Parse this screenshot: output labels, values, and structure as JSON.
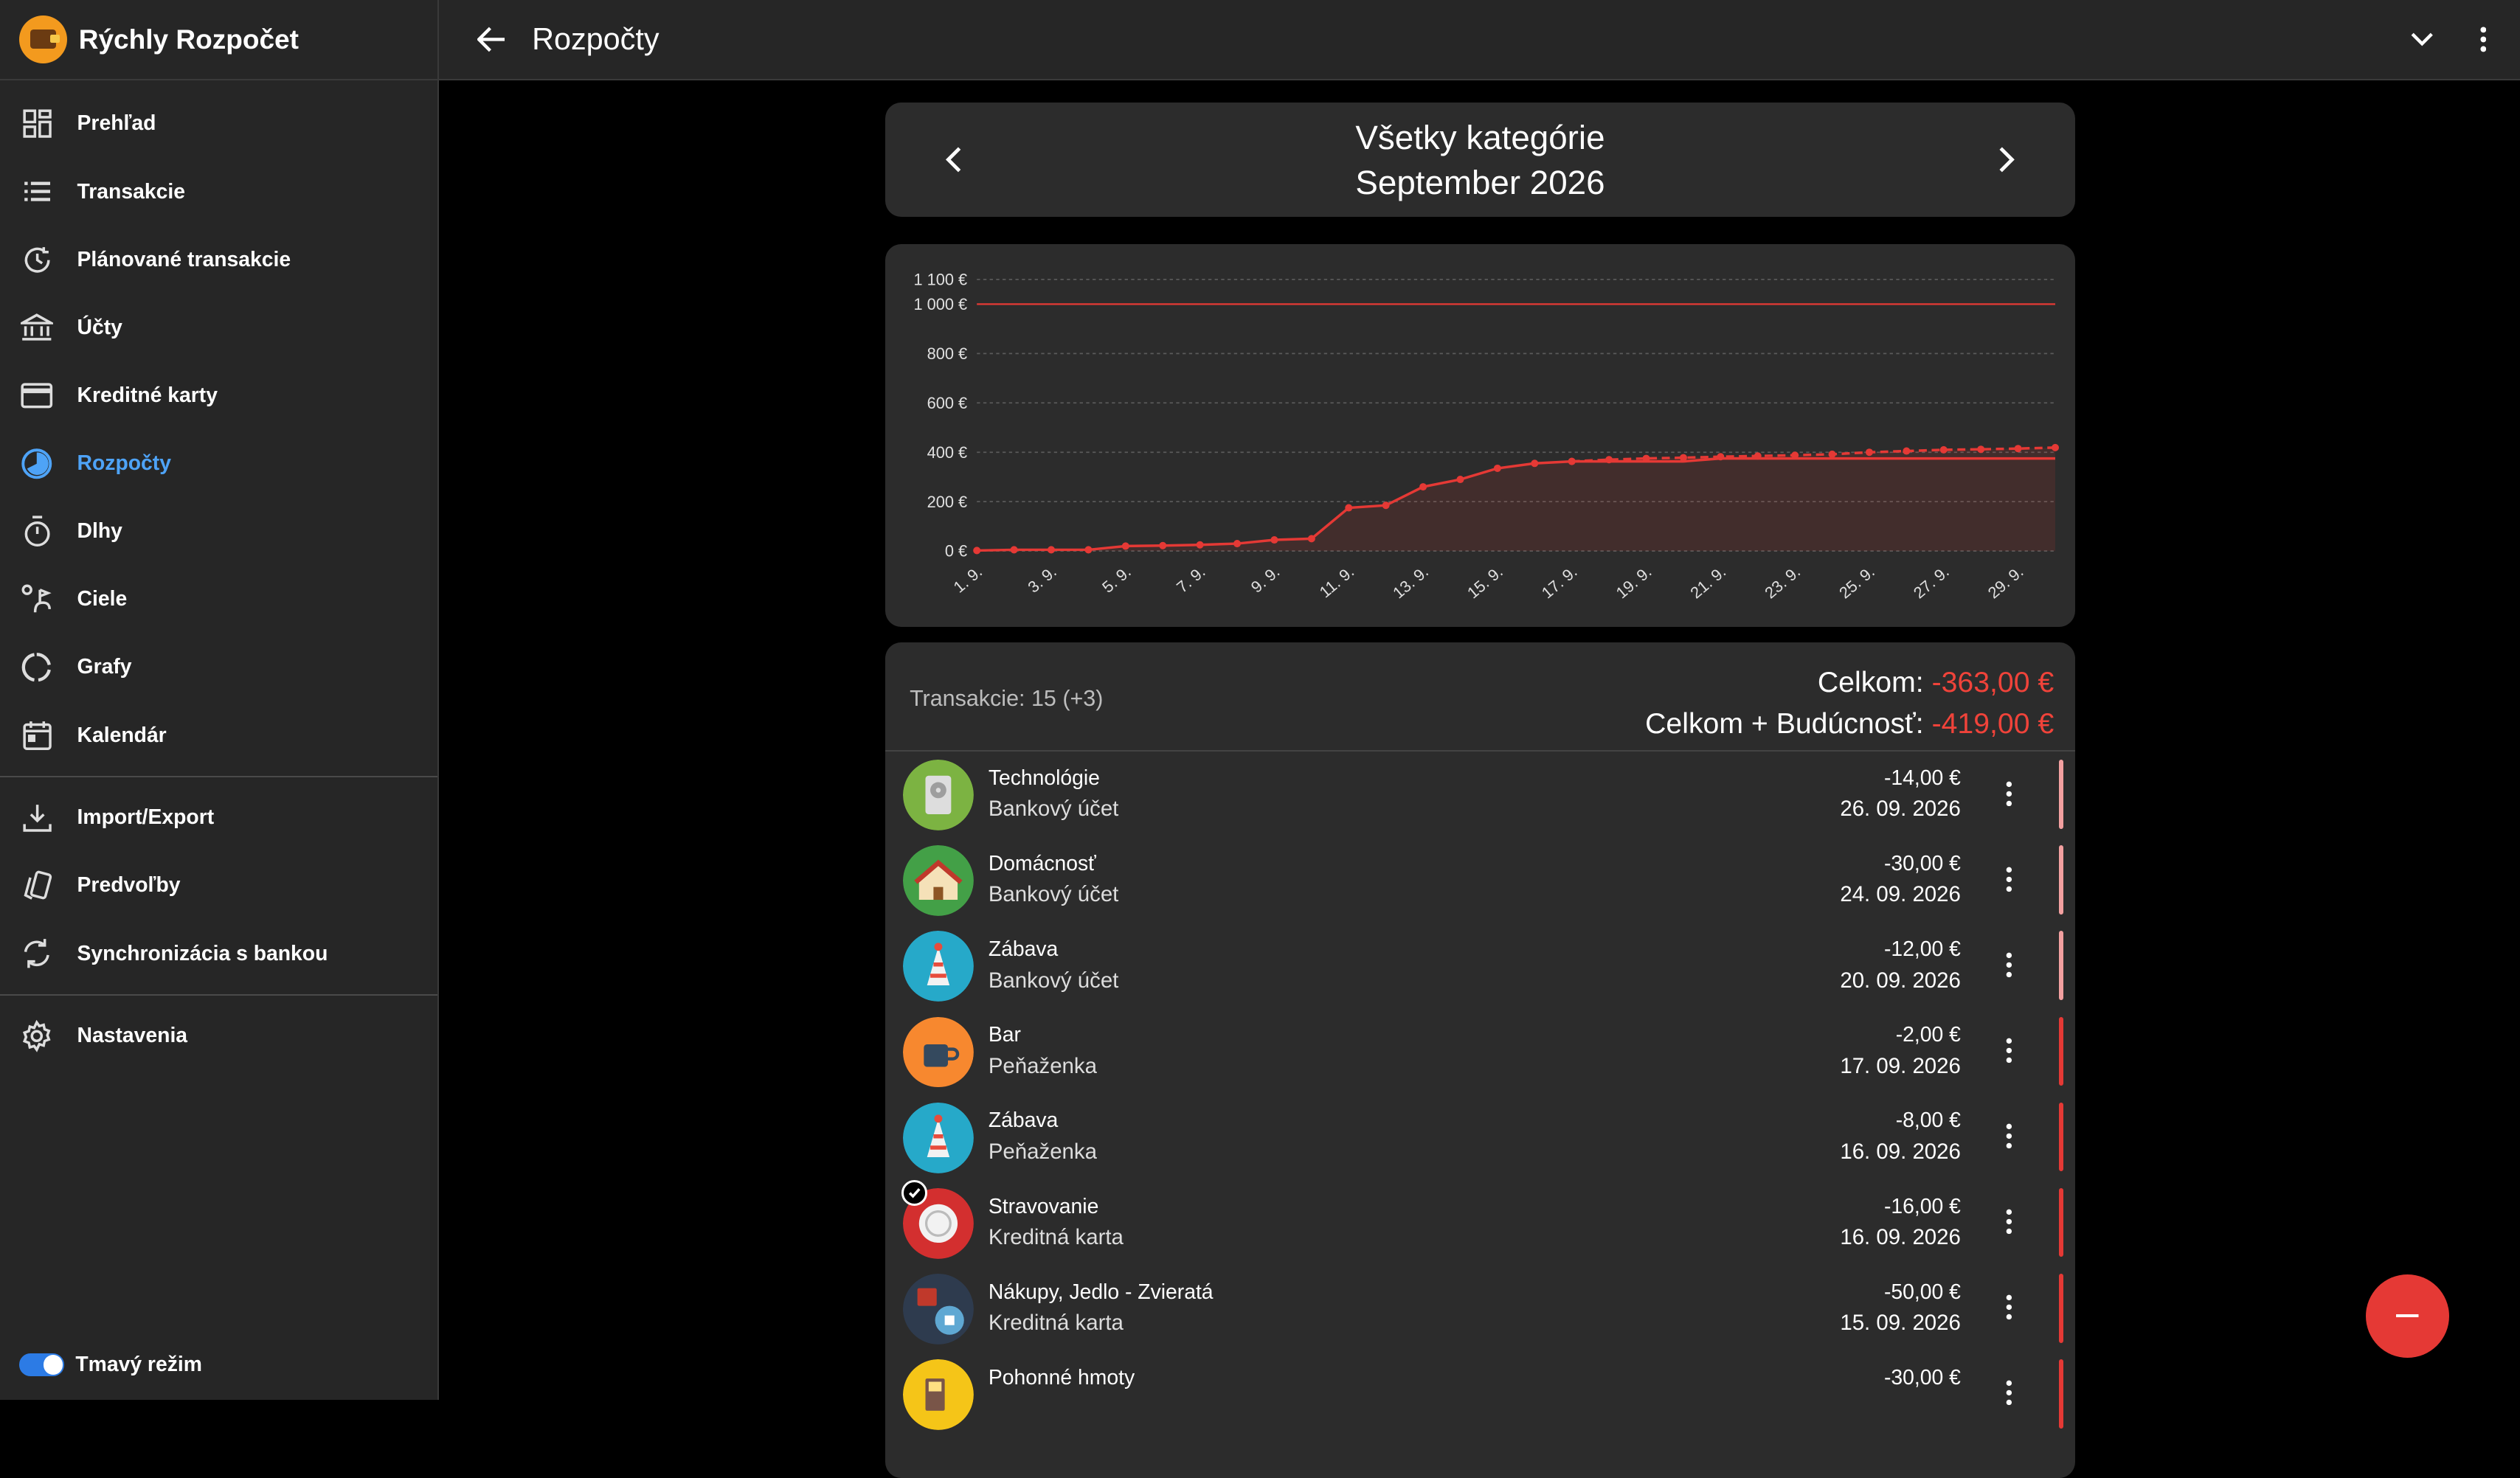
{
  "app": {
    "title": "Rýchly Rozpočet"
  },
  "nav": {
    "items": [
      {
        "label": "Prehľad",
        "icon": "dashboard-icon"
      },
      {
        "label": "Transakcie",
        "icon": "list-icon"
      },
      {
        "label": "Plánované transakcie",
        "icon": "scheduled-icon"
      },
      {
        "label": "Účty",
        "icon": "bank-icon"
      },
      {
        "label": "Kreditné karty",
        "icon": "credit-card-icon"
      },
      {
        "label": "Rozpočty",
        "icon": "budget-icon",
        "active": true
      },
      {
        "label": "Dlhy",
        "icon": "timer-icon"
      },
      {
        "label": "Ciele",
        "icon": "goal-icon"
      },
      {
        "label": "Grafy",
        "icon": "chart-icon"
      },
      {
        "label": "Kalendár",
        "icon": "calendar-icon"
      }
    ],
    "tools": [
      {
        "label": "Import/Export",
        "icon": "download-icon"
      },
      {
        "label": "Predvoľby",
        "icon": "presets-icon"
      },
      {
        "label": "Synchronizácia s bankou",
        "icon": "sync-icon"
      }
    ],
    "settings": {
      "label": "Nastavenia",
      "icon": "gear-icon"
    },
    "dark_mode": {
      "label": "Tmavý režim",
      "on": true
    }
  },
  "topbar": {
    "title": "Rozpočty"
  },
  "period": {
    "category": "Všetky kategórie",
    "month": "September 2026"
  },
  "chart_data": {
    "type": "line",
    "x": [
      "1. 9.",
      "2. 9.",
      "3. 9.",
      "4. 9.",
      "5. 9.",
      "6. 9.",
      "7. 9.",
      "8. 9.",
      "9. 9.",
      "10. 9.",
      "11. 9.",
      "12. 9.",
      "13. 9.",
      "14. 9.",
      "15. 9.",
      "16. 9.",
      "17. 9.",
      "18. 9.",
      "19. 9.",
      "20. 9.",
      "21. 9.",
      "22. 9.",
      "23. 9.",
      "24. 9.",
      "25. 9.",
      "26. 9.",
      "27. 9.",
      "28. 9.",
      "29. 9.",
      "30. 9."
    ],
    "x_tick_labels": [
      "1. 9.",
      "3. 9.",
      "5. 9.",
      "7. 9.",
      "9. 9.",
      "11. 9.",
      "13. 9.",
      "15. 9.",
      "17. 9.",
      "19. 9.",
      "21. 9.",
      "23. 9.",
      "25. 9.",
      "27. 9.",
      "29. 9."
    ],
    "series": [
      {
        "values": [
          2,
          5,
          5,
          5,
          20,
          22,
          25,
          30,
          45,
          50,
          175,
          185,
          260,
          290,
          335,
          355,
          363,
          363,
          363,
          363,
          375,
          375,
          375,
          375,
          375,
          375,
          375,
          375,
          375,
          375
        ],
        "style": "solid"
      },
      {
        "values": [
          null,
          null,
          null,
          null,
          null,
          null,
          null,
          null,
          null,
          null,
          null,
          null,
          null,
          null,
          null,
          null,
          363,
          370,
          375,
          378,
          382,
          385,
          388,
          392,
          400,
          405,
          410,
          412,
          415,
          419
        ],
        "style": "dashed"
      }
    ],
    "y_ticks": [
      "0 €",
      "200 €",
      "400 €",
      "600 €",
      "800 €",
      "1 000 €",
      "1 100 €"
    ],
    "y_tick_values": [
      0,
      200,
      400,
      600,
      800,
      1000,
      1100
    ],
    "ylim": [
      0,
      1100
    ],
    "budget_line": 1000,
    "grid": true,
    "color": "#e53935"
  },
  "summary": {
    "transactions": "Transakcie: 15 (+3)",
    "total_label": "Celkom:",
    "total_value": "-363,00 €",
    "future_label": "Celkom + Budúcnosť:",
    "future_value": "-419,00 €"
  },
  "transactions": [
    {
      "category": "Technológie",
      "account": "Bankový účet",
      "amount": "-14,00 €",
      "date": "26. 09. 2026",
      "icon": "hard-drive-icon",
      "color": "#7cb342",
      "bar": "#f3a0a0"
    },
    {
      "category": "Domácnosť",
      "account": "Bankový účet",
      "amount": "-30,00 €",
      "date": "24. 09. 2026",
      "icon": "house-icon",
      "color": "#43a047",
      "bar": "#f3a0a0"
    },
    {
      "category": "Zábava",
      "account": "Bankový účet",
      "amount": "-12,00 €",
      "date": "20. 09. 2026",
      "icon": "party-hat-icon",
      "color": "#26a9c9",
      "bar": "#f3a0a0"
    },
    {
      "category": "Bar",
      "account": "Peňaženka",
      "amount": "-2,00 €",
      "date": "17. 09. 2026",
      "icon": "coffee-cup-icon",
      "color": "#f7882f",
      "bar": "#e53935"
    },
    {
      "category": "Zábava",
      "account": "Peňaženka",
      "amount": "-8,00 €",
      "date": "16. 09. 2026",
      "icon": "party-hat-icon",
      "color": "#26a9c9",
      "bar": "#e53935"
    },
    {
      "category": "Stravovanie",
      "account": "Kreditná karta",
      "amount": "-16,00 €",
      "date": "16. 09. 2026",
      "icon": "plate-icon",
      "color": "#d32f2f",
      "bar": "#e53935",
      "checked": true
    },
    {
      "category": "Nákupy, Jedlo - Zvieratá",
      "account": "Kreditná karta",
      "amount": "-50,00 €",
      "date": "15. 09. 2026",
      "icon": "shopping-icon",
      "color": "#2e3b4e",
      "bar": "#e53935"
    },
    {
      "category": "Pohonné hmoty",
      "account": "",
      "amount": "-30,00 €",
      "date": "",
      "icon": "fuel-icon",
      "color": "#f5c518",
      "bar": "#e53935"
    }
  ]
}
